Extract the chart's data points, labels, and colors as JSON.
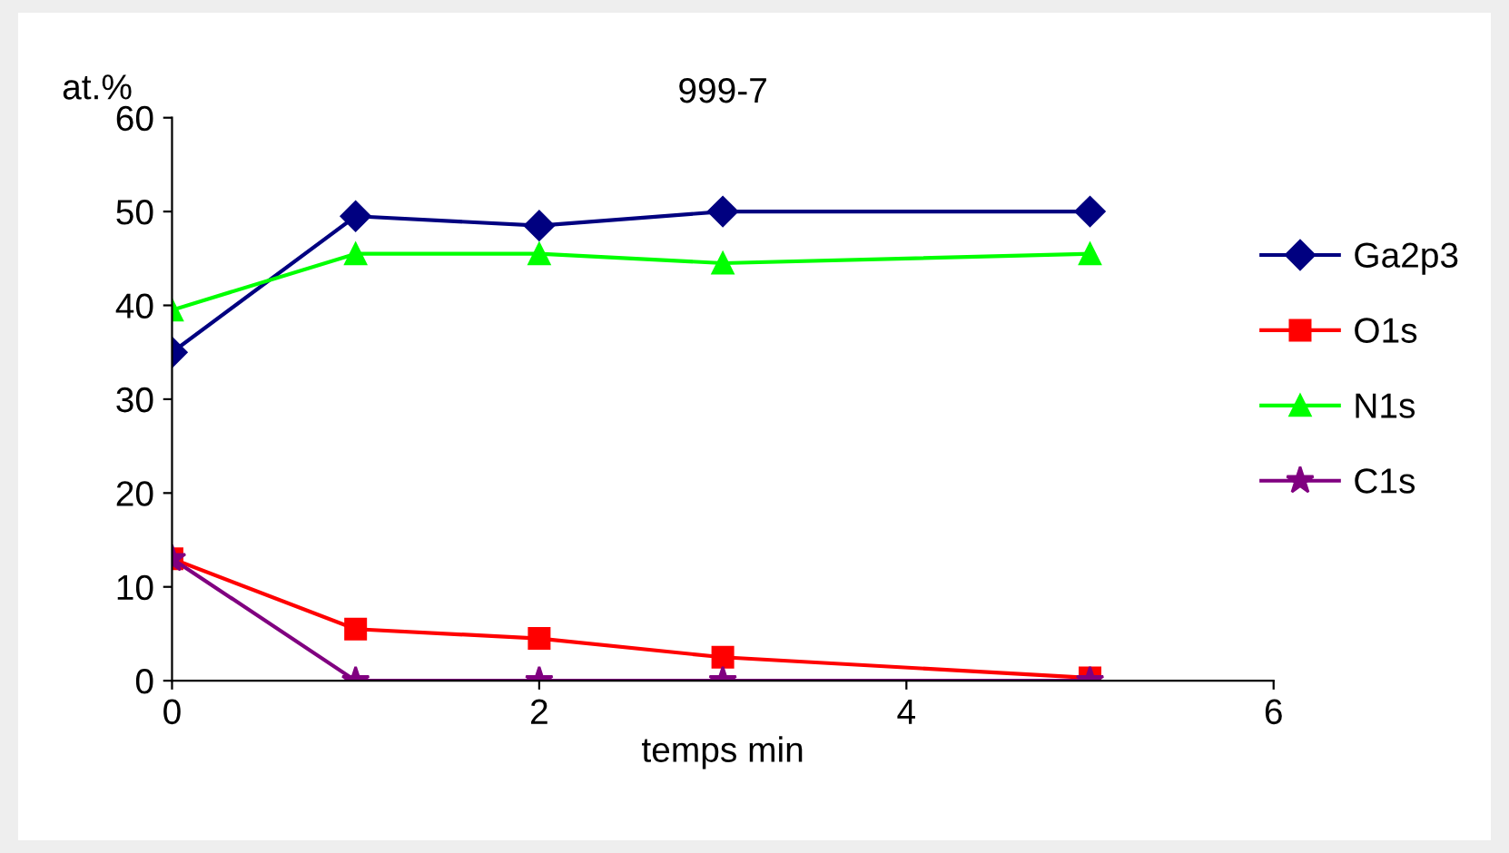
{
  "chart_data": {
    "type": "line",
    "title": "999-7",
    "xlabel": "temps min",
    "ylabel": "at.%",
    "x": [
      0,
      1,
      2,
      3,
      5
    ],
    "series": [
      {
        "name": "Ga2p3",
        "color": "#000080",
        "marker": "diamond",
        "values": [
          35,
          49.5,
          48.5,
          50,
          50
        ]
      },
      {
        "name": "O1s",
        "color": "#ff0000",
        "marker": "square",
        "values": [
          13,
          5.5,
          4.5,
          2.5,
          0.3
        ]
      },
      {
        "name": "N1s",
        "color": "#00ff00",
        "marker": "triangle",
        "values": [
          39.5,
          45.5,
          45.5,
          44.5,
          45.5
        ]
      },
      {
        "name": "C1s",
        "color": "#800080",
        "marker": "star",
        "values": [
          13,
          0,
          0,
          0,
          0
        ]
      }
    ],
    "xlim": [
      0,
      6
    ],
    "xticks": [
      0,
      2,
      4,
      6
    ],
    "ylim": [
      0,
      60
    ],
    "yticks": [
      0,
      10,
      20,
      30,
      40,
      50,
      60
    ],
    "grid": false,
    "legend": "right",
    "line_style": "solid"
  }
}
